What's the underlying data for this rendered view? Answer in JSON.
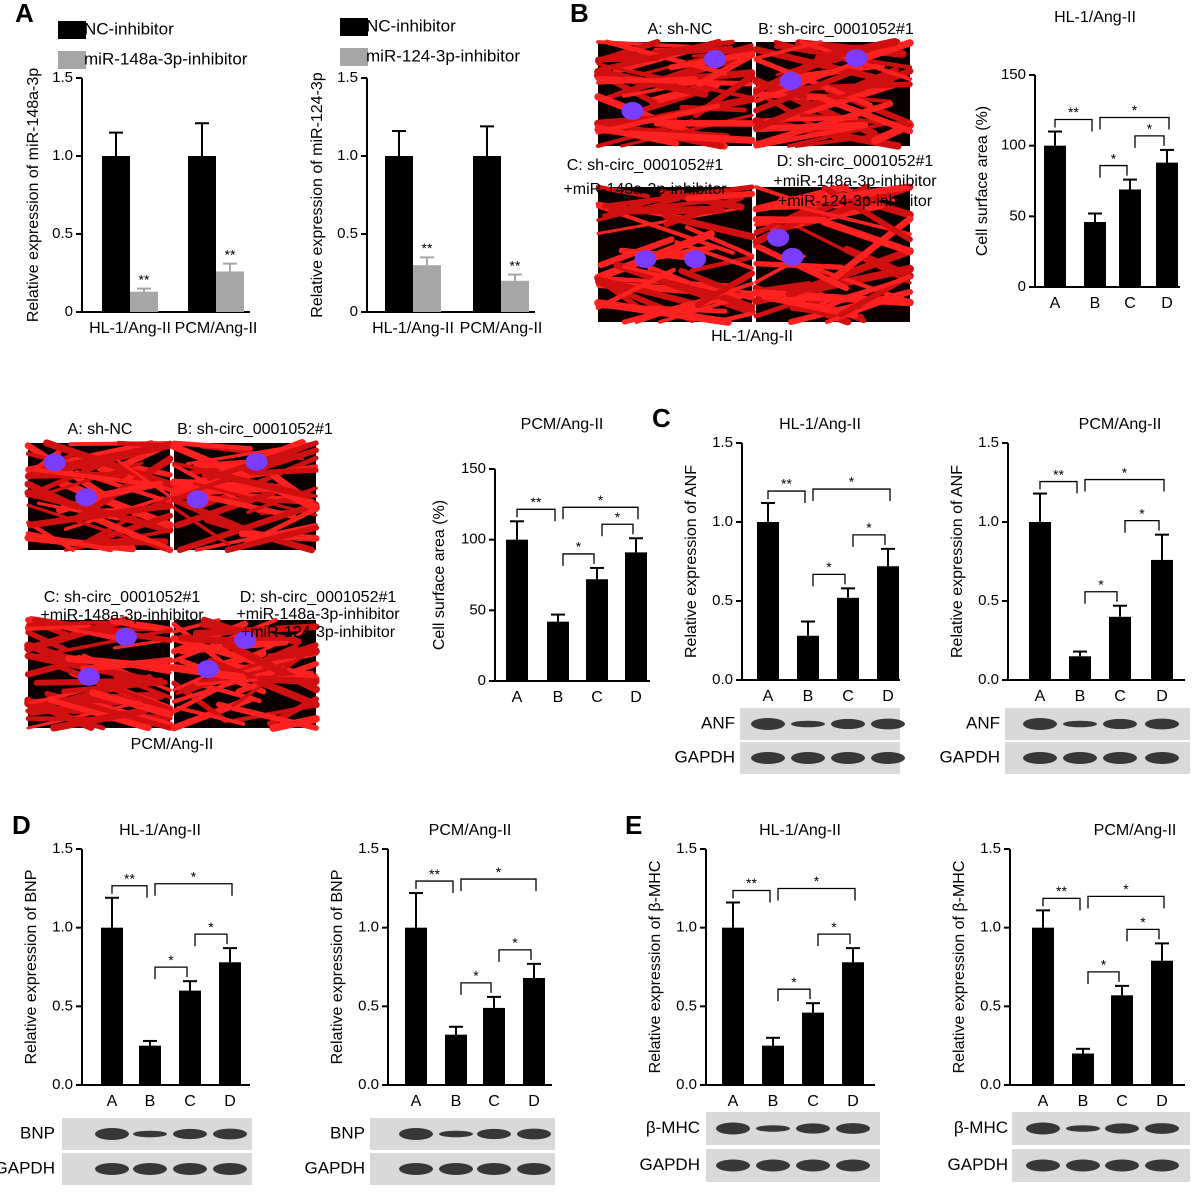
{
  "panels": [
    "A",
    "B",
    "C",
    "D",
    "E"
  ],
  "micrographs": [
    {
      "labels": [
        [
          "A: sh-NC"
        ],
        [
          "B: sh-circ_0001052#1"
        ],
        [
          "C: sh-circ_0001052#1",
          "+miR-148a-3p-inhibitor"
        ],
        [
          "D: sh-circ_0001052#1",
          "+miR-148a-3p-inhibitor",
          "+miR-124-3p-inhibitor"
        ]
      ],
      "caption": "HL-1/Ang-II"
    },
    {
      "labels": [
        [
          "A: sh-NC"
        ],
        [
          "B: sh-circ_0001052#1"
        ],
        [
          "C: sh-circ_0001052#1",
          "+miR-148a-3p-inhibitor"
        ],
        [
          "D: sh-circ_0001052#1",
          "+miR-148a-3p-inhibitor",
          "+miR-124-3p-inhibitor"
        ]
      ],
      "caption": "PCM/Ang-II"
    }
  ],
  "blots": [
    {
      "rows": [
        "ANF",
        "GAPDH"
      ]
    },
    {
      "rows": [
        "ANF",
        "GAPDH"
      ]
    },
    {
      "rows": [
        "BNP",
        "GAPDH"
      ]
    },
    {
      "rows": [
        "BNP",
        "GAPDH"
      ]
    },
    {
      "rows": [
        "β-MHC",
        "GAPDH"
      ]
    },
    {
      "rows": [
        "β-MHC",
        "GAPDH"
      ]
    }
  ],
  "chart_data": [
    {
      "type": "grouped-bar",
      "y_label": "Relative expression of miR-148a-3p",
      "categories": [
        "HL-1/Ang-II",
        "PCM/Ang-II"
      ],
      "series": [
        {
          "name": "NC-inhibitor",
          "color": "#000000",
          "values": [
            1.0,
            1.0
          ],
          "errors": [
            0.15,
            0.21
          ]
        },
        {
          "name": "miR-148a-3p-inhibitor",
          "color": "#a6a6a6",
          "values": [
            0.13,
            0.26
          ],
          "errors": [
            0.02,
            0.05
          ]
        }
      ],
      "annotations": [
        {
          "label": "**",
          "series": "miR-148a-3p-inhibitor",
          "category": "HL-1/Ang-II"
        },
        {
          "label": "**",
          "series": "miR-148a-3p-inhibitor",
          "category": "PCM/Ang-II"
        }
      ],
      "ylim": [
        0,
        1.5
      ],
      "yticks": [
        0,
        0.5,
        {
          "value": 1,
          "label": "1.0"
        },
        1.5
      ]
    },
    {
      "type": "grouped-bar",
      "y_label": "Relative expression of miR-124-3p",
      "categories": [
        "HL-1/Ang-II",
        "PCM/Ang-II"
      ],
      "series": [
        {
          "name": "NC-inhibitor",
          "color": "#000000",
          "values": [
            1.0,
            1.0
          ],
          "errors": [
            0.16,
            0.19
          ]
        },
        {
          "name": "miR-124-3p-inhibitor",
          "color": "#a6a6a6",
          "values": [
            0.3,
            0.2
          ],
          "errors": [
            0.05,
            0.04
          ]
        }
      ],
      "annotations": [
        {
          "label": "**",
          "series": "miR-124-3p-inhibitor",
          "category": "HL-1/Ang-II"
        },
        {
          "label": "**",
          "series": "miR-124-3p-inhibitor",
          "category": "PCM/Ang-II"
        }
      ],
      "ylim": [
        0,
        1.5
      ],
      "yticks": [
        0,
        0.5,
        {
          "value": 1,
          "label": "1.0"
        },
        1.5
      ]
    },
    {
      "type": "bar",
      "title": "HL-1/Ang-II",
      "y_label": "Cell surface area (%)",
      "categories": [
        "A",
        "B",
        "C",
        "D"
      ],
      "color": "#000000",
      "values": [
        100,
        46,
        69,
        88
      ],
      "errors": [
        10,
        6,
        7,
        9
      ],
      "significance": [
        {
          "label": "**",
          "between": [
            "A",
            "B"
          ]
        },
        {
          "label": "*",
          "between": [
            "B",
            "C"
          ]
        },
        {
          "label": "*",
          "between": [
            "C",
            "D"
          ]
        },
        {
          "label": "*",
          "between": [
            "B",
            "D"
          ]
        }
      ],
      "ylim": [
        0,
        150
      ],
      "yticks": [
        0,
        50,
        100,
        150
      ]
    },
    {
      "type": "bar",
      "title": "PCM/Ang-II",
      "y_label": "Cell surface area (%)",
      "categories": [
        "A",
        "B",
        "C",
        "D"
      ],
      "color": "#000000",
      "values": [
        100,
        42,
        72,
        91
      ],
      "errors": [
        13,
        5,
        8,
        10
      ],
      "significance": [
        {
          "label": "**",
          "between": [
            "A",
            "B"
          ]
        },
        {
          "label": "*",
          "between": [
            "B",
            "C"
          ]
        },
        {
          "label": "*",
          "between": [
            "C",
            "D"
          ]
        },
        {
          "label": "*",
          "between": [
            "B",
            "D"
          ]
        }
      ],
      "ylim": [
        0,
        150
      ],
      "yticks": [
        0,
        50,
        100,
        150
      ]
    },
    {
      "type": "bar",
      "title": "HL-1/Ang-II",
      "y_label": "Relative expression of ANF",
      "categories": [
        "A",
        "B",
        "C",
        "D"
      ],
      "color": "#000000",
      "values": [
        1.0,
        0.28,
        0.52,
        0.72
      ],
      "errors": [
        0.12,
        0.09,
        0.06,
        0.11
      ],
      "significance": [
        {
          "label": "**",
          "between": [
            "A",
            "B"
          ]
        },
        {
          "label": "*",
          "between": [
            "B",
            "C"
          ]
        },
        {
          "label": "*",
          "between": [
            "C",
            "D"
          ]
        },
        {
          "label": "*",
          "between": [
            "B",
            "D"
          ]
        }
      ],
      "ylim": [
        0,
        1.5
      ],
      "yticks": [
        {
          "value": 0,
          "label": "0.0"
        },
        0.5,
        {
          "value": 1,
          "label": "1.0"
        },
        1.5
      ]
    },
    {
      "type": "bar",
      "title": "PCM/Ang-II",
      "y_label": "Relative expression of ANF",
      "categories": [
        "A",
        "B",
        "C",
        "D"
      ],
      "color": "#000000",
      "values": [
        1.0,
        0.15,
        0.4,
        0.76
      ],
      "errors": [
        0.18,
        0.03,
        0.07,
        0.16
      ],
      "significance": [
        {
          "label": "**",
          "between": [
            "A",
            "B"
          ]
        },
        {
          "label": "*",
          "between": [
            "B",
            "C"
          ]
        },
        {
          "label": "*",
          "between": [
            "C",
            "D"
          ]
        },
        {
          "label": "*",
          "between": [
            "B",
            "D"
          ]
        }
      ],
      "ylim": [
        0,
        1.5
      ],
      "yticks": [
        {
          "value": 0,
          "label": "0.0"
        },
        0.5,
        {
          "value": 1,
          "label": "1.0"
        },
        1.5
      ]
    },
    {
      "type": "bar",
      "title": "HL-1/Ang-II",
      "y_label": "Relative expression of BNP",
      "categories": [
        "A",
        "B",
        "C",
        "D"
      ],
      "color": "#000000",
      "values": [
        1.0,
        0.25,
        0.6,
        0.78
      ],
      "errors": [
        0.19,
        0.03,
        0.06,
        0.09
      ],
      "significance": [
        {
          "label": "**",
          "between": [
            "A",
            "B"
          ]
        },
        {
          "label": "*",
          "between": [
            "B",
            "C"
          ]
        },
        {
          "label": "*",
          "between": [
            "C",
            "D"
          ]
        },
        {
          "label": "*",
          "between": [
            "B",
            "D"
          ]
        }
      ],
      "ylim": [
        0,
        1.5
      ],
      "yticks": [
        {
          "value": 0,
          "label": "0.0"
        },
        0.5,
        {
          "value": 1,
          "label": "1.0"
        },
        1.5
      ]
    },
    {
      "type": "bar",
      "title": "PCM/Ang-II",
      "y_label": "Relative expression of BNP",
      "categories": [
        "A",
        "B",
        "C",
        "D"
      ],
      "color": "#000000",
      "values": [
        1.0,
        0.32,
        0.49,
        0.68
      ],
      "errors": [
        0.22,
        0.05,
        0.07,
        0.09
      ],
      "significance": [
        {
          "label": "**",
          "between": [
            "A",
            "B"
          ]
        },
        {
          "label": "*",
          "between": [
            "B",
            "C"
          ]
        },
        {
          "label": "*",
          "between": [
            "C",
            "D"
          ]
        },
        {
          "label": "*",
          "between": [
            "B",
            "D"
          ]
        }
      ],
      "ylim": [
        0,
        1.5
      ],
      "yticks": [
        {
          "value": 0,
          "label": "0.0"
        },
        0.5,
        {
          "value": 1,
          "label": "1.0"
        },
        1.5
      ]
    },
    {
      "type": "bar",
      "title": "HL-1/Ang-II",
      "y_label": "Relative expression of β-MHC",
      "categories": [
        "A",
        "B",
        "C",
        "D"
      ],
      "color": "#000000",
      "values": [
        1.0,
        0.25,
        0.46,
        0.78
      ],
      "errors": [
        0.16,
        0.05,
        0.06,
        0.09
      ],
      "significance": [
        {
          "label": "**",
          "between": [
            "A",
            "B"
          ]
        },
        {
          "label": "*",
          "between": [
            "B",
            "C"
          ]
        },
        {
          "label": "*",
          "between": [
            "C",
            "D"
          ]
        },
        {
          "label": "*",
          "between": [
            "B",
            "D"
          ]
        }
      ],
      "ylim": [
        0,
        1.5
      ],
      "yticks": [
        {
          "value": 0,
          "label": "0.0"
        },
        0.5,
        {
          "value": 1,
          "label": "1.0"
        },
        1.5
      ]
    },
    {
      "type": "bar",
      "title": "PCM/Ang-II",
      "y_label": "Relative expression of β-MHC",
      "categories": [
        "A",
        "B",
        "C",
        "D"
      ],
      "color": "#000000",
      "values": [
        1.0,
        0.2,
        0.57,
        0.79
      ],
      "errors": [
        0.11,
        0.03,
        0.06,
        0.11
      ],
      "significance": [
        {
          "label": "**",
          "between": [
            "A",
            "B"
          ]
        },
        {
          "label": "*",
          "between": [
            "B",
            "C"
          ]
        },
        {
          "label": "*",
          "between": [
            "C",
            "D"
          ]
        },
        {
          "label": "*",
          "between": [
            "B",
            "D"
          ]
        }
      ],
      "ylim": [
        0,
        1.5
      ],
      "yticks": [
        {
          "value": 0,
          "label": "0.0"
        },
        0.5,
        {
          "value": 1,
          "label": "1.0"
        },
        1.5
      ]
    }
  ]
}
